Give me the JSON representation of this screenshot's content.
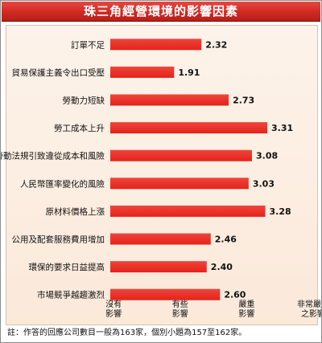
{
  "title": "珠三角經營環境的影響因素",
  "footnote": "註：作答的回應公司數目一般為163家，個別小題為157至162家。",
  "colors": {
    "title_bg": "#cf2a23",
    "bar": "#e3231b",
    "panel_bg": "#fbeee2"
  },
  "chart_data": {
    "type": "bar",
    "orientation": "horizontal",
    "categories": [
      "訂單不足",
      "貿易保護主義令出口受壓",
      "勞動力短缺",
      "勞工成本上升",
      "勞動法規引致違從成本和風險",
      "人民幣匯率變化的風險",
      "原材料價格上漲",
      "公用及配套服務費用增加",
      "環保的要求日益提高",
      "市場競爭越趨激烈"
    ],
    "values": [
      2.32,
      1.91,
      2.73,
      3.31,
      3.08,
      3.03,
      3.28,
      2.46,
      2.4,
      2.6
    ],
    "value_labels": [
      "2.32",
      "1.91",
      "2.73",
      "3.31",
      "3.08",
      "3.03",
      "3.28",
      "2.46",
      "2.40",
      "2.60"
    ],
    "xlim": [
      0.95,
      4.0
    ],
    "xticks": [
      {
        "value": 1,
        "label": [
          "沒有",
          "影響"
        ]
      },
      {
        "value": 2,
        "label": [
          "有些",
          "影響"
        ]
      },
      {
        "value": 3,
        "label": [
          "嚴重",
          "影響"
        ]
      },
      {
        "value": 4,
        "label": [
          "非常嚴重",
          "之影響"
        ]
      }
    ],
    "grid": false,
    "legend": "none"
  }
}
